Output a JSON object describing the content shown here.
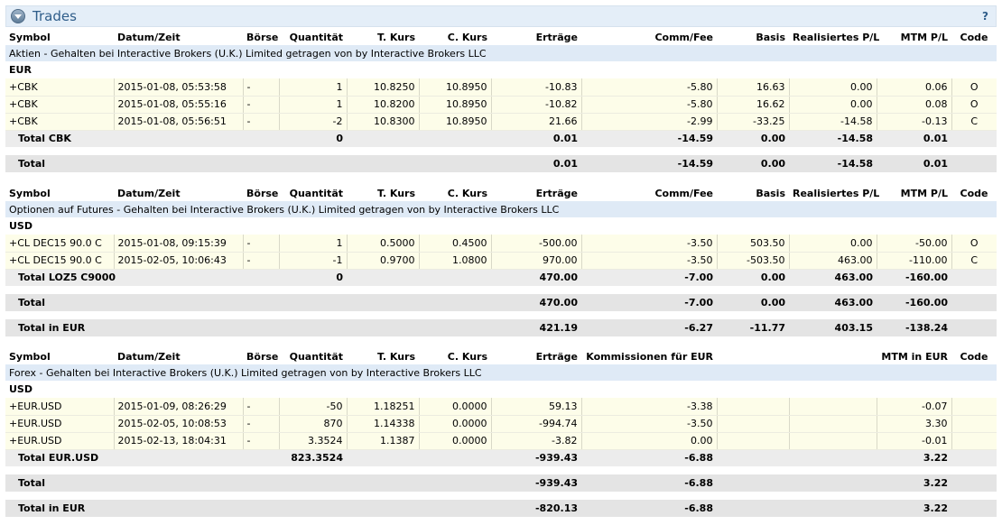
{
  "panel": {
    "title": "Trades",
    "help": "?"
  },
  "col_headers_std": [
    "Symbol",
    "Datum/Zeit",
    "Börse",
    "Quantität",
    "T. Kurs",
    "C. Kurs",
    "Erträge",
    "Comm/Fee",
    "Basis",
    "Realisiertes P/L",
    "MTM P/L",
    "Code"
  ],
  "col_headers_fx": [
    "Symbol",
    "Datum/Zeit",
    "Börse",
    "Quantität",
    "T. Kurs",
    "C. Kurs",
    "Erträge",
    "Kommissionen für EUR",
    "",
    "",
    "MTM in EUR",
    "Code"
  ],
  "stocks": {
    "section": "Aktien - Gehalten bei Interactive Brokers (U.K.) Limited getragen von by Interactive Brokers LLC",
    "currency": "EUR",
    "rows": [
      [
        "+CBK",
        "2015-01-08, 05:53:58",
        "-",
        "1",
        "10.8250",
        "10.8950",
        "-10.83",
        "-5.80",
        "16.63",
        "0.00",
        "0.06",
        "O"
      ],
      [
        "+CBK",
        "2015-01-08, 05:55:16",
        "-",
        "1",
        "10.8200",
        "10.8950",
        "-10.82",
        "-5.80",
        "16.62",
        "0.00",
        "0.08",
        "O"
      ],
      [
        "+CBK",
        "2015-01-08, 05:56:51",
        "-",
        "-2",
        "10.8300",
        "10.8950",
        "21.66",
        "-2.99",
        "-33.25",
        "-14.58",
        "-0.13",
        "C"
      ]
    ],
    "subtotal": [
      "Total CBK",
      "",
      "",
      "0",
      "",
      "",
      "0.01",
      "-14.59",
      "0.00",
      "-14.58",
      "0.01",
      ""
    ],
    "total": [
      "Total",
      "",
      "",
      "",
      "",
      "",
      "0.01",
      "-14.59",
      "0.00",
      "-14.58",
      "0.01",
      ""
    ]
  },
  "futures": {
    "section": "Optionen auf Futures - Gehalten bei Interactive Brokers (U.K.) Limited getragen von by Interactive Brokers LLC",
    "currency": "USD",
    "rows": [
      [
        "+CL DEC15 90.0 C",
        "2015-01-08, 09:15:39",
        "-",
        "1",
        "0.5000",
        "0.4500",
        "-500.00",
        "-3.50",
        "503.50",
        "0.00",
        "-50.00",
        "O"
      ],
      [
        "+CL DEC15 90.0 C",
        "2015-02-05, 10:06:43",
        "-",
        "-1",
        "0.9700",
        "1.0800",
        "970.00",
        "-3.50",
        "-503.50",
        "463.00",
        "-110.00",
        "C"
      ]
    ],
    "subtotal": [
      "Total LOZ5 C9000",
      "",
      "",
      "0",
      "",
      "",
      "470.00",
      "-7.00",
      "0.00",
      "463.00",
      "-160.00",
      ""
    ],
    "total": [
      "Total",
      "",
      "",
      "",
      "",
      "",
      "470.00",
      "-7.00",
      "0.00",
      "463.00",
      "-160.00",
      ""
    ],
    "total_eur": [
      "Total in EUR",
      "",
      "",
      "",
      "",
      "",
      "421.19",
      "-6.27",
      "-11.77",
      "403.15",
      "-138.24",
      ""
    ]
  },
  "forex": {
    "section": "Forex - Gehalten bei Interactive Brokers (U.K.) Limited getragen von by Interactive Brokers LLC",
    "currency": "USD",
    "rows": [
      [
        "+EUR.USD",
        "2015-01-09, 08:26:29",
        "-",
        "-50",
        "1.18251",
        "0.0000",
        "59.13",
        "-3.38",
        "",
        "",
        "-0.07",
        ""
      ],
      [
        "+EUR.USD",
        "2015-02-05, 10:08:53",
        "-",
        "870",
        "1.14338",
        "0.0000",
        "-994.74",
        "-3.50",
        "",
        "",
        "3.30",
        ""
      ],
      [
        "+EUR.USD",
        "2015-02-13, 18:04:31",
        "-",
        "3.3524",
        "1.1387",
        "0.0000",
        "-3.82",
        "0.00",
        "",
        "",
        "-0.01",
        ""
      ]
    ],
    "subtotal": [
      "Total EUR.USD",
      "",
      "",
      "823.3524",
      "",
      "",
      "-939.43",
      "-6.88",
      "",
      "",
      "3.22",
      ""
    ],
    "total": [
      "Total",
      "",
      "",
      "",
      "",
      "",
      "-939.43",
      "-6.88",
      "",
      "",
      "3.22",
      ""
    ],
    "total_eur": [
      "Total in EUR",
      "",
      "",
      "",
      "",
      "",
      "-820.13",
      "-6.88",
      "",
      "",
      "3.22",
      ""
    ]
  }
}
